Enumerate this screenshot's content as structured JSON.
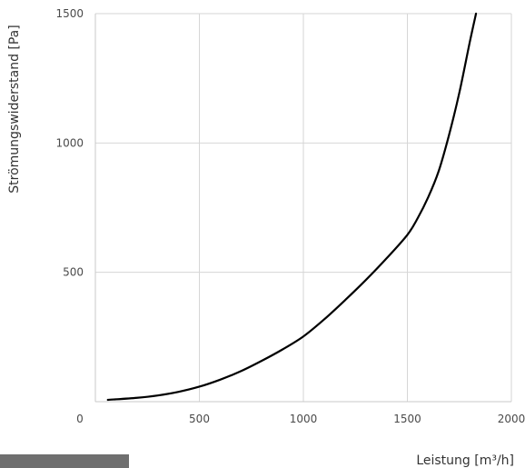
{
  "chart_data": {
    "type": "line",
    "title": "",
    "xlabel": "Leistung [m³/h]",
    "ylabel": "Strömungswiderstand [Pa]",
    "xlim": [
      0,
      2000
    ],
    "ylim": [
      0,
      1500
    ],
    "x_ticks": [
      0,
      500,
      1000,
      1500,
      2000
    ],
    "y_ticks": [
      500,
      1000,
      1500
    ],
    "x_tick_labels": [
      "0",
      "500",
      "1000",
      "1500",
      "2000"
    ],
    "y_tick_labels": [
      "500",
      "1000",
      "1500"
    ],
    "grid": true,
    "series": [
      {
        "color": "#000000",
        "x": [
          60,
          200,
          300,
          400,
          500,
          600,
          700,
          800,
          900,
          1000,
          1100,
          1200,
          1300,
          1400,
          1500,
          1550,
          1600,
          1650,
          1700,
          1750,
          1800,
          1830
        ],
        "y": [
          7,
          15,
          24,
          38,
          58,
          85,
          118,
          158,
          202,
          252,
          318,
          392,
          470,
          554,
          645,
          710,
          790,
          890,
          1030,
          1195,
          1390,
          1500
        ]
      }
    ]
  }
}
